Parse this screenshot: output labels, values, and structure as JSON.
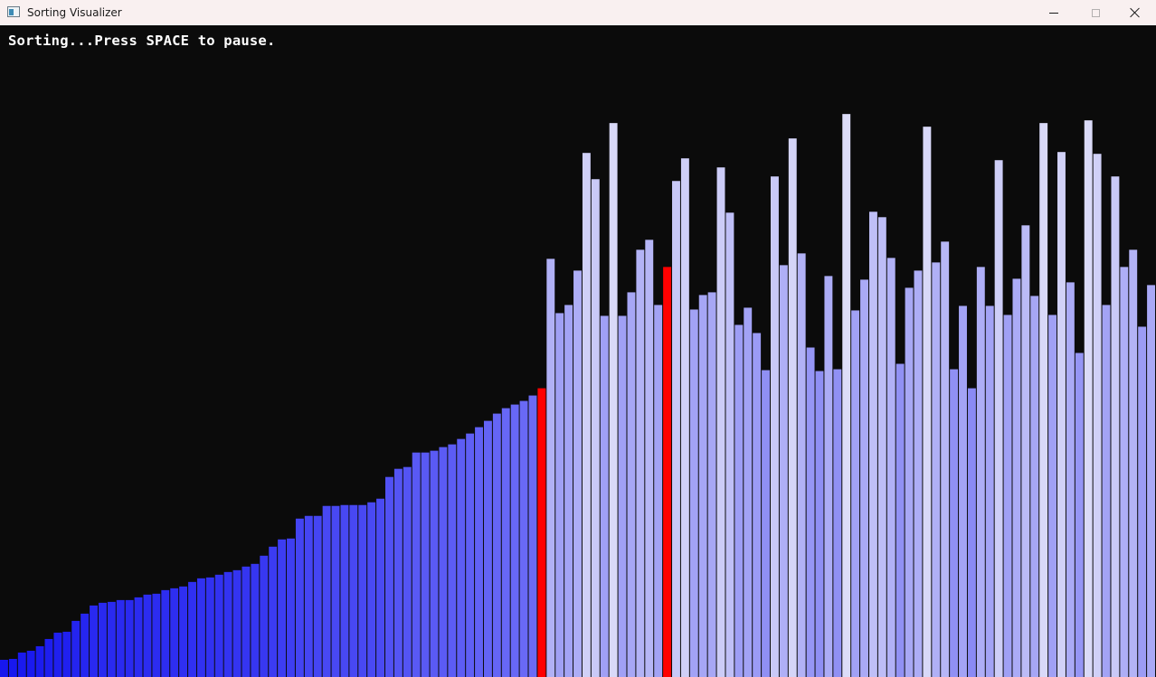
{
  "window": {
    "title": "Sorting Visualizer",
    "icon": "app-window-icon"
  },
  "titlebar_buttons": {
    "minimize_icon": "minimize-icon",
    "maximize_icon": "maximize-icon",
    "close_icon": "close-icon"
  },
  "status": {
    "message": "Sorting...Press SPACE to pause."
  },
  "colors": {
    "background": "#0b0b0b",
    "sorted_low": "#1212ee",
    "sorted_high": "#6b6bf6",
    "active": "#ff0000",
    "unsorted_low": "#8a8af4",
    "unsorted_high": "#dcdcf8"
  },
  "chart_data": {
    "type": "bar",
    "sorted_count": 60,
    "active_indices": [
      60,
      74
    ],
    "ylim": [
      0,
      720
    ],
    "values": [
      19,
      20,
      27,
      29,
      34,
      42,
      49,
      50,
      62,
      70,
      79,
      82,
      83,
      85,
      85,
      88,
      91,
      92,
      96,
      98,
      100,
      105,
      109,
      110,
      113,
      116,
      118,
      122,
      125,
      134,
      144,
      152,
      153,
      175,
      178,
      178,
      189,
      189,
      190,
      190,
      190,
      193,
      197,
      221,
      230,
      232,
      248,
      248,
      250,
      254,
      257,
      263,
      269,
      276,
      283,
      291,
      297,
      301,
      305,
      311,
      319,
      462,
      402,
      411,
      449,
      579,
      550,
      399,
      612,
      399,
      425,
      472,
      483,
      411,
      453,
      548,
      573,
      406,
      422,
      425,
      563,
      513,
      389,
      408,
      380,
      339,
      553,
      455,
      595,
      468,
      364,
      338,
      443,
      340,
      622,
      405,
      439,
      514,
      508,
      463,
      346,
      430,
      449,
      608,
      458,
      481,
      340,
      410,
      319,
      453,
      410,
      571,
      400,
      440,
      499,
      421,
      612,
      400,
      580,
      436,
      358,
      615,
      578,
      411,
      553,
      453,
      472,
      387,
      433
    ]
  }
}
